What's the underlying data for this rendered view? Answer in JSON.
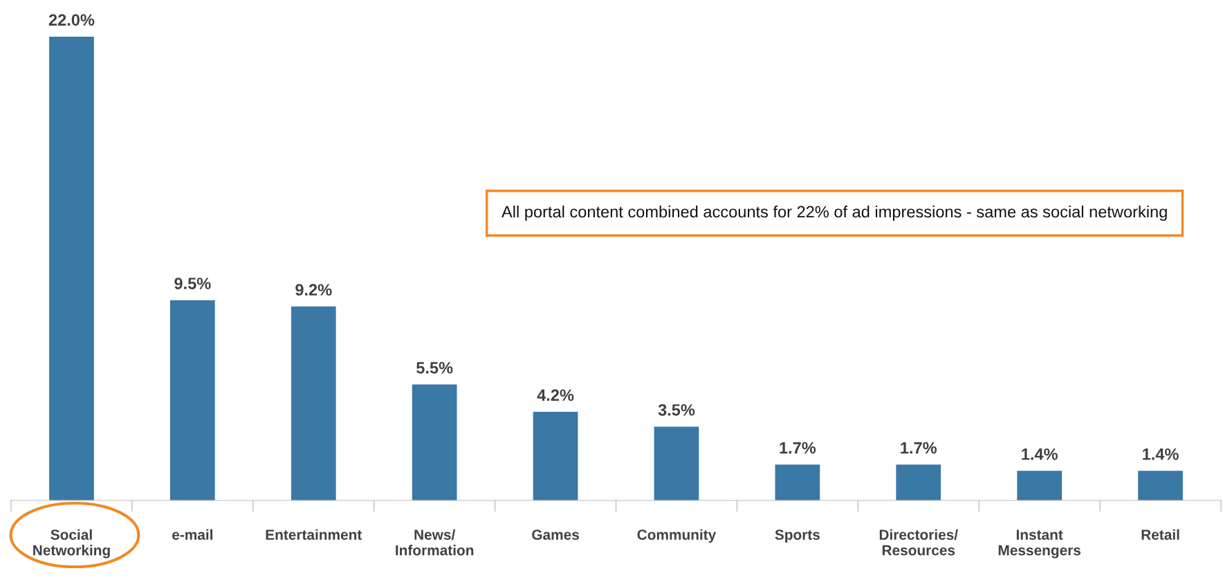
{
  "chart_data": {
    "type": "bar",
    "categories": [
      "Social\nNetworking",
      "e-mail",
      "Entertainment",
      "News/\nInformation",
      "Games",
      "Community",
      "Sports",
      "Directories/\nResources",
      "Instant\nMessengers",
      "Retail"
    ],
    "values": [
      22.0,
      9.5,
      9.2,
      5.5,
      4.2,
      3.5,
      1.7,
      1.7,
      1.4,
      1.4
    ],
    "value_labels": [
      "22.0%",
      "9.5%",
      "9.2%",
      "5.5%",
      "4.2%",
      "3.5%",
      "1.7%",
      "1.7%",
      "1.4%",
      "1.4%"
    ],
    "color": "#3a78a6",
    "annotations": [
      "All portal content combined accounts for 22% of ad impressions - same as social networking"
    ]
  }
}
